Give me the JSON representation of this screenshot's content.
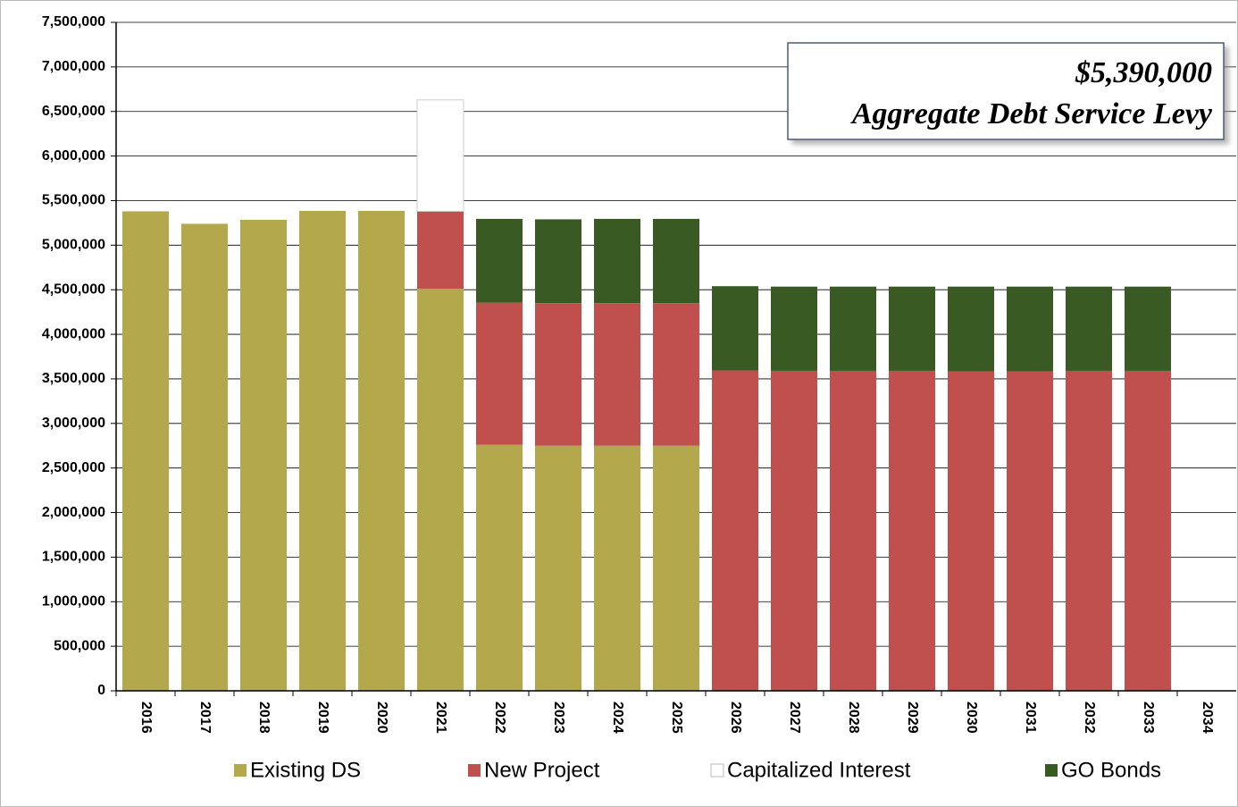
{
  "chart_data": {
    "type": "stacked_bar",
    "annotation": [
      "$5,390,000",
      "Aggregate Debt Service Levy"
    ],
    "categories": [
      "2016",
      "2017",
      "2018",
      "2019",
      "2020",
      "2021",
      "2022",
      "2023",
      "2024",
      "2025",
      "2026",
      "2027",
      "2028",
      "2029",
      "2030",
      "2031",
      "2032",
      "2033",
      "2034"
    ],
    "series": [
      {
        "name": "Existing DS",
        "color": "#b3a84b",
        "values": [
          5380000,
          5240000,
          5285000,
          5385000,
          5385000,
          4510000,
          2760000,
          2750000,
          2750000,
          2750000,
          null,
          null,
          null,
          null,
          null,
          null,
          null,
          null,
          null
        ]
      },
      {
        "name": "New Project",
        "color": "#c0504d",
        "values": [
          null,
          null,
          null,
          null,
          null,
          870000,
          1595000,
          1600000,
          1600000,
          1600000,
          3595000,
          3590000,
          3590000,
          3590000,
          3585000,
          3585000,
          3590000,
          3590000,
          null
        ]
      },
      {
        "name": "Capitalized Interest",
        "color": "#ffffff",
        "values": [
          null,
          null,
          null,
          null,
          null,
          1250000,
          null,
          null,
          null,
          null,
          null,
          null,
          null,
          null,
          null,
          null,
          null,
          null,
          null
        ]
      },
      {
        "name": "GO Bonds",
        "color": "#3a5a24",
        "values": [
          null,
          null,
          null,
          null,
          null,
          null,
          940000,
          940000,
          945000,
          945000,
          945000,
          945000,
          945000,
          945000,
          950000,
          950000,
          945000,
          945000,
          null
        ]
      }
    ],
    "ylim": [
      0,
      7500000
    ],
    "yticks": [
      0,
      {
        "value": 500000,
        "label": "500,000"
      },
      {
        "value": 1000000,
        "label": "1,000,000"
      },
      {
        "value": 1500000,
        "label": "1,500,000"
      },
      {
        "value": 2000000,
        "label": "2,000,000"
      },
      {
        "value": 2500000,
        "label": "2,500,000"
      },
      {
        "value": 3000000,
        "label": "3,000,000"
      },
      {
        "value": 3500000,
        "label": "3,500,000"
      },
      {
        "value": 4000000,
        "label": "4,000,000"
      },
      {
        "value": 4500000,
        "label": "4,500,000"
      },
      {
        "value": 5000000,
        "label": "5,000,000"
      },
      {
        "value": 5500000,
        "label": "5,500,000"
      },
      {
        "value": 6000000,
        "label": "6,000,000"
      },
      {
        "value": 6500000,
        "label": "6,500,000"
      },
      {
        "value": 7000000,
        "label": "7,000,000"
      },
      {
        "value": 7500000,
        "label": "7,500,000"
      }
    ],
    "grid": true
  }
}
